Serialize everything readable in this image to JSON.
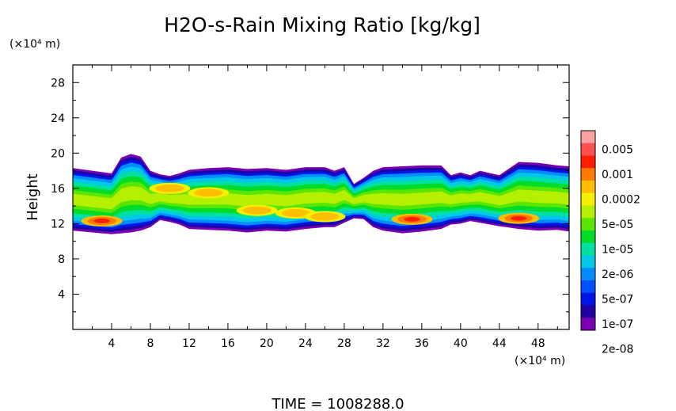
{
  "chart_data": {
    "type": "heatmap",
    "title": "H2O-s-Rain Mixing Ratio [kg/kg]",
    "ylabel": "Height",
    "y_unit_label": "(×10⁴ m)",
    "x_unit_label": "(×10⁴ m)",
    "footer": "TIME = 1008288.0",
    "xlim": [
      0,
      51.2
    ],
    "ylim": [
      0,
      30
    ],
    "x_ticks": [
      "4",
      "8",
      "12",
      "16",
      "20",
      "24",
      "28",
      "32",
      "36",
      "40",
      "44",
      "48"
    ],
    "y_ticks": [
      "4",
      "8",
      "12",
      "16",
      "20",
      "24",
      "28"
    ],
    "legend": {
      "placement": "right",
      "levels": [
        "0.005",
        "0.001",
        "0.0002",
        "5e-05",
        "1e-05",
        "2e-06",
        "5e-07",
        "1e-07",
        "2e-08"
      ],
      "colors": [
        "#ffa0a0",
        "#ff5050",
        "#ff1e00",
        "#ff7a00",
        "#ffbf00",
        "#f5f000",
        "#b4f000",
        "#5ae600",
        "#00dc28",
        "#00e0a0",
        "#00c8e6",
        "#008cff",
        "#0050ff",
        "#0014e6",
        "#2000a0",
        "#7a00b4"
      ]
    },
    "band": {
      "x": [
        0,
        2,
        4,
        5,
        6,
        7,
        8,
        9,
        10,
        11,
        12,
        14,
        16,
        18,
        20,
        22,
        24,
        26,
        27,
        28,
        29,
        30,
        31,
        32,
        34,
        36,
        38,
        39,
        40,
        41,
        42,
        44,
        46,
        48,
        50,
        51.2
      ],
      "top": [
        18.3,
        18.0,
        17.7,
        19.5,
        19.9,
        19.6,
        18.0,
        17.6,
        17.4,
        17.7,
        18.1,
        18.3,
        18.4,
        18.2,
        18.3,
        18.1,
        18.4,
        18.4,
        18.0,
        18.4,
        16.5,
        17.2,
        18.0,
        18.4,
        18.5,
        18.6,
        18.6,
        17.5,
        17.8,
        17.5,
        18.0,
        17.5,
        19.0,
        18.9,
        18.6,
        18.5
      ],
      "bottom": [
        11.2,
        11.0,
        10.8,
        10.9,
        11.0,
        11.2,
        11.6,
        12.4,
        12.2,
        11.9,
        11.4,
        11.3,
        11.2,
        11.0,
        11.2,
        11.1,
        11.4,
        11.6,
        11.6,
        12.1,
        12.6,
        12.5,
        11.6,
        11.2,
        10.9,
        11.1,
        11.4,
        11.9,
        12.0,
        12.3,
        12.1,
        11.7,
        11.4,
        11.2,
        11.3,
        11.1
      ]
    },
    "pockets": [
      {
        "x": 3,
        "y": 12.3,
        "level": "0.0002"
      },
      {
        "x": 10,
        "y": 16.0,
        "level": "5e-05"
      },
      {
        "x": 14,
        "y": 15.5,
        "level": "5e-05"
      },
      {
        "x": 19,
        "y": 13.5,
        "level": "5e-05"
      },
      {
        "x": 23,
        "y": 13.2,
        "level": "5e-05"
      },
      {
        "x": 26,
        "y": 12.8,
        "level": "5e-05"
      },
      {
        "x": 35,
        "y": 12.5,
        "level": "0.0002"
      },
      {
        "x": 46,
        "y": 12.6,
        "level": "0.0002"
      }
    ]
  }
}
